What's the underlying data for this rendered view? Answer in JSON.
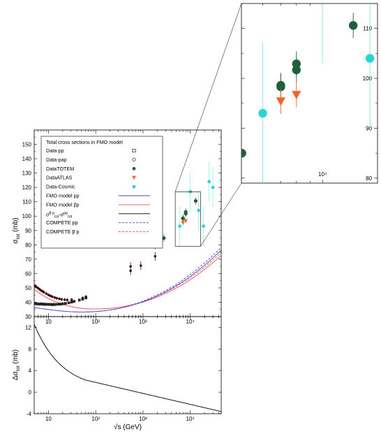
{
  "chart_data": [
    {
      "type": "scatter",
      "panel": "main",
      "xscale": "log",
      "xlim": [
        5,
        45000
      ],
      "ylim": [
        30,
        160
      ],
      "xlabel": "",
      "ylabel_main": "σ",
      "ylabel_sub": "tot",
      "ylabel_unit": "(mb)",
      "x_ticks": [
        {
          "v": 10,
          "label": "10"
        },
        {
          "v": 100,
          "label": "10²"
        },
        {
          "v": 1000,
          "label": "10³"
        },
        {
          "v": 10000,
          "label": "10⁴"
        }
      ],
      "y_ticks": [
        30,
        40,
        50,
        60,
        70,
        80,
        90,
        100,
        110,
        120,
        130,
        140,
        150
      ],
      "legend": {
        "title": "Total cross sections in FMO model",
        "entries": [
          {
            "key": "pp",
            "label": "Data-pp",
            "symbol": "square-open",
            "color": "#000000"
          },
          {
            "key": "pap",
            "label": "Data-pap",
            "symbol": "circle-open",
            "color": "#000000"
          },
          {
            "key": "totem",
            "label": "DataTOTEM",
            "symbol": "circle",
            "color": "#1f5f3a"
          },
          {
            "key": "atlas",
            "label": "DataATLAS",
            "symbol": "triangle-down",
            "color": "#f26522"
          },
          {
            "key": "cosmic",
            "label": "Data-Cosmic",
            "symbol": "circle",
            "color": "#2ad4d4"
          },
          {
            "key": "fmo_pp",
            "label": "FMO model pp",
            "symbol": "line",
            "color": "#4848c8"
          },
          {
            "key": "fmo_pbp",
            "label": "FMO model p̅p",
            "symbol": "line",
            "color": "#e8505a"
          },
          {
            "key": "diff",
            "label": "",
            "symbol": "line",
            "color": "#000000"
          },
          {
            "key": "comp_pp",
            "label": "COMPETE pp",
            "symbol": "dash",
            "color": "#4848c8"
          },
          {
            "key": "comp_pbp",
            "label": "COMPETE p̅ p",
            "symbol": "dash",
            "color": "#e8505a"
          }
        ],
        "diff_label": {
          "a": "σ",
          "a_sup": "p̅ p",
          "a_sub": "tot",
          "dash": "-",
          "b": "σ",
          "b_sup": "pp",
          "b_sub": "tot"
        }
      },
      "series": [
        {
          "name": "Data-pp",
          "points": [
            [
              5.2,
              39.1
            ],
            [
              5.5,
              38.9
            ],
            [
              6.0,
              38.8
            ],
            [
              6.5,
              38.7
            ],
            [
              7.0,
              38.9
            ],
            [
              7.5,
              38.6
            ],
            [
              8.0,
              38.7
            ],
            [
              8.5,
              38.5
            ],
            [
              9.0,
              38.6
            ],
            [
              10.0,
              38.5
            ],
            [
              11.0,
              38.5
            ],
            [
              12.0,
              38.3
            ],
            [
              13.0,
              38.5
            ],
            [
              14.0,
              38.4
            ],
            [
              16.0,
              38.6
            ],
            [
              18.0,
              38.7
            ],
            [
              20.0,
              38.9
            ],
            [
              23.0,
              39.2
            ],
            [
              27.0,
              39.6
            ],
            [
              31.0,
              40.1
            ],
            [
              35.0,
              40.6
            ],
            [
              45.0,
              41.5
            ],
            [
              53.0,
              42.2
            ],
            [
              62.0,
              43.0
            ]
          ]
        },
        {
          "name": "Data-pap",
          "points": [
            [
              5.2,
              51.5
            ],
            [
              5.5,
              50.8
            ],
            [
              6.0,
              49.9
            ],
            [
              6.5,
              49.0
            ],
            [
              7.0,
              48.2
            ],
            [
              7.5,
              47.6
            ],
            [
              8.0,
              47.0
            ],
            [
              9.0,
              46.0
            ],
            [
              10.0,
              45.1
            ],
            [
              11.0,
              44.5
            ],
            [
              12.0,
              43.9
            ],
            [
              13.5,
              43.3
            ],
            [
              15.0,
              42.8
            ],
            [
              17.0,
              42.4
            ],
            [
              19.0,
              42.0
            ],
            [
              22.0,
              41.8
            ],
            [
              25.0,
              41.6
            ],
            [
              31.0,
              41.8
            ],
            [
              53.0,
              43.0
            ],
            [
              62.0,
              43.9
            ],
            [
              546,
              61.9
            ],
            [
              546,
              65.0
            ],
            [
              900,
              65.5
            ],
            [
              1800,
              72.0
            ],
            [
              1800,
              80.0
            ]
          ]
        },
        {
          "name": "DataTOTEM",
          "points": [
            [
              2760,
              84.7
            ],
            [
              7000,
              98.3
            ],
            [
              7000,
              98.6
            ],
            [
              8000,
              101.7
            ],
            [
              8000,
              102.9
            ],
            [
              13000,
              110.6
            ]
          ]
        },
        {
          "name": "DataATLAS",
          "points": [
            [
              7000,
              95.4
            ],
            [
              8000,
              96.7
            ]
          ]
        },
        {
          "name": "Data-Cosmic",
          "points": [
            [
              6000,
              93.0
            ],
            [
              10000,
              117.0
            ],
            [
              15000,
              104.0
            ],
            [
              19000,
              93.0
            ],
            [
              25000,
              124.0
            ],
            [
              30000,
              120.0
            ]
          ]
        }
      ]
    },
    {
      "type": "scatter",
      "panel": "inset",
      "xscale": "log",
      "xlim": [
        5000,
        16000
      ],
      "ylim": [
        79,
        115
      ],
      "y_ticks": [
        80,
        90,
        100,
        110
      ],
      "x_ticks": [
        {
          "v": 10000,
          "label": "10⁴"
        }
      ]
    },
    {
      "type": "line",
      "panel": "difference",
      "xscale": "log",
      "xlim": [
        5,
        45000
      ],
      "ylim": [
        -4,
        14
      ],
      "xlabel_main": "√s",
      "xlabel_unit": "(GeV)",
      "ylabel_main": "Δσ",
      "ylabel_sub": "tot",
      "ylabel_unit": "(mb)",
      "y_ticks": [
        -4,
        0,
        4,
        8,
        12
      ],
      "x_ticks": [
        {
          "v": 10,
          "label": "10"
        },
        {
          "v": 100,
          "label": "10²"
        },
        {
          "v": 1000,
          "label": "10³"
        },
        {
          "v": 10000,
          "label": "10⁴"
        }
      ]
    }
  ]
}
